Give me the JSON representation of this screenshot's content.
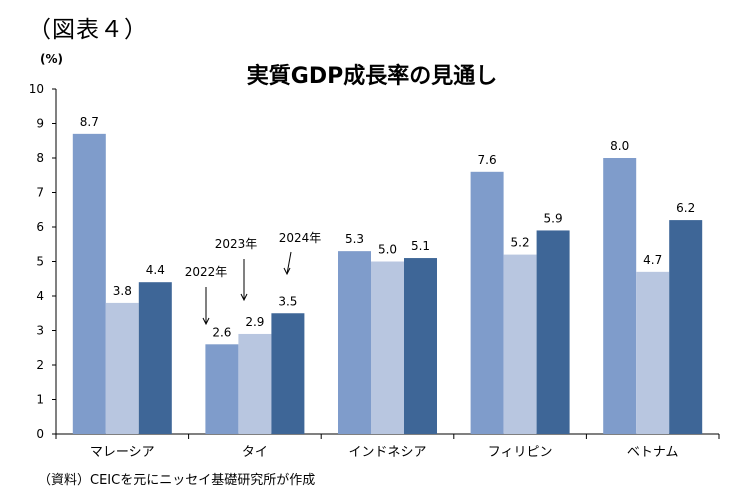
{
  "figure_label": "（図表４）",
  "source_note": "（資料）CEICを元にニッセイ基礎研究所が作成",
  "colors": {
    "2022": "#7f9ccb",
    "2023": "#b8c6e0",
    "2024": "#3e6697"
  },
  "chart_data": {
    "type": "bar",
    "title": "実質GDP成長率の見通し",
    "ylabel": "(%)",
    "ylim": [
      0,
      10
    ],
    "yticks": [
      "0",
      "1",
      "2",
      "3",
      "4",
      "5",
      "6",
      "7",
      "8",
      "9",
      "10"
    ],
    "categories": [
      "マレーシア",
      "タイ",
      "インドネシア",
      "フィリピン",
      "ベトナム"
    ],
    "series": [
      {
        "name": "2022年",
        "values": [
          8.7,
          2.6,
          5.3,
          7.6,
          8.0
        ],
        "labels": [
          "8.7",
          "2.6",
          "5.3",
          "7.6",
          "8.0"
        ]
      },
      {
        "name": "2023年",
        "values": [
          3.8,
          2.9,
          5.0,
          5.2,
          4.7
        ],
        "labels": [
          "3.8",
          "2.9",
          "5.0",
          "5.2",
          "4.7"
        ]
      },
      {
        "name": "2024年",
        "values": [
          4.4,
          3.5,
          5.1,
          5.9,
          6.2
        ],
        "labels": [
          "4.4",
          "3.5",
          "5.1",
          "5.9",
          "6.2"
        ]
      }
    ],
    "grid": false,
    "legend": "annotated arrows on タイ group"
  }
}
